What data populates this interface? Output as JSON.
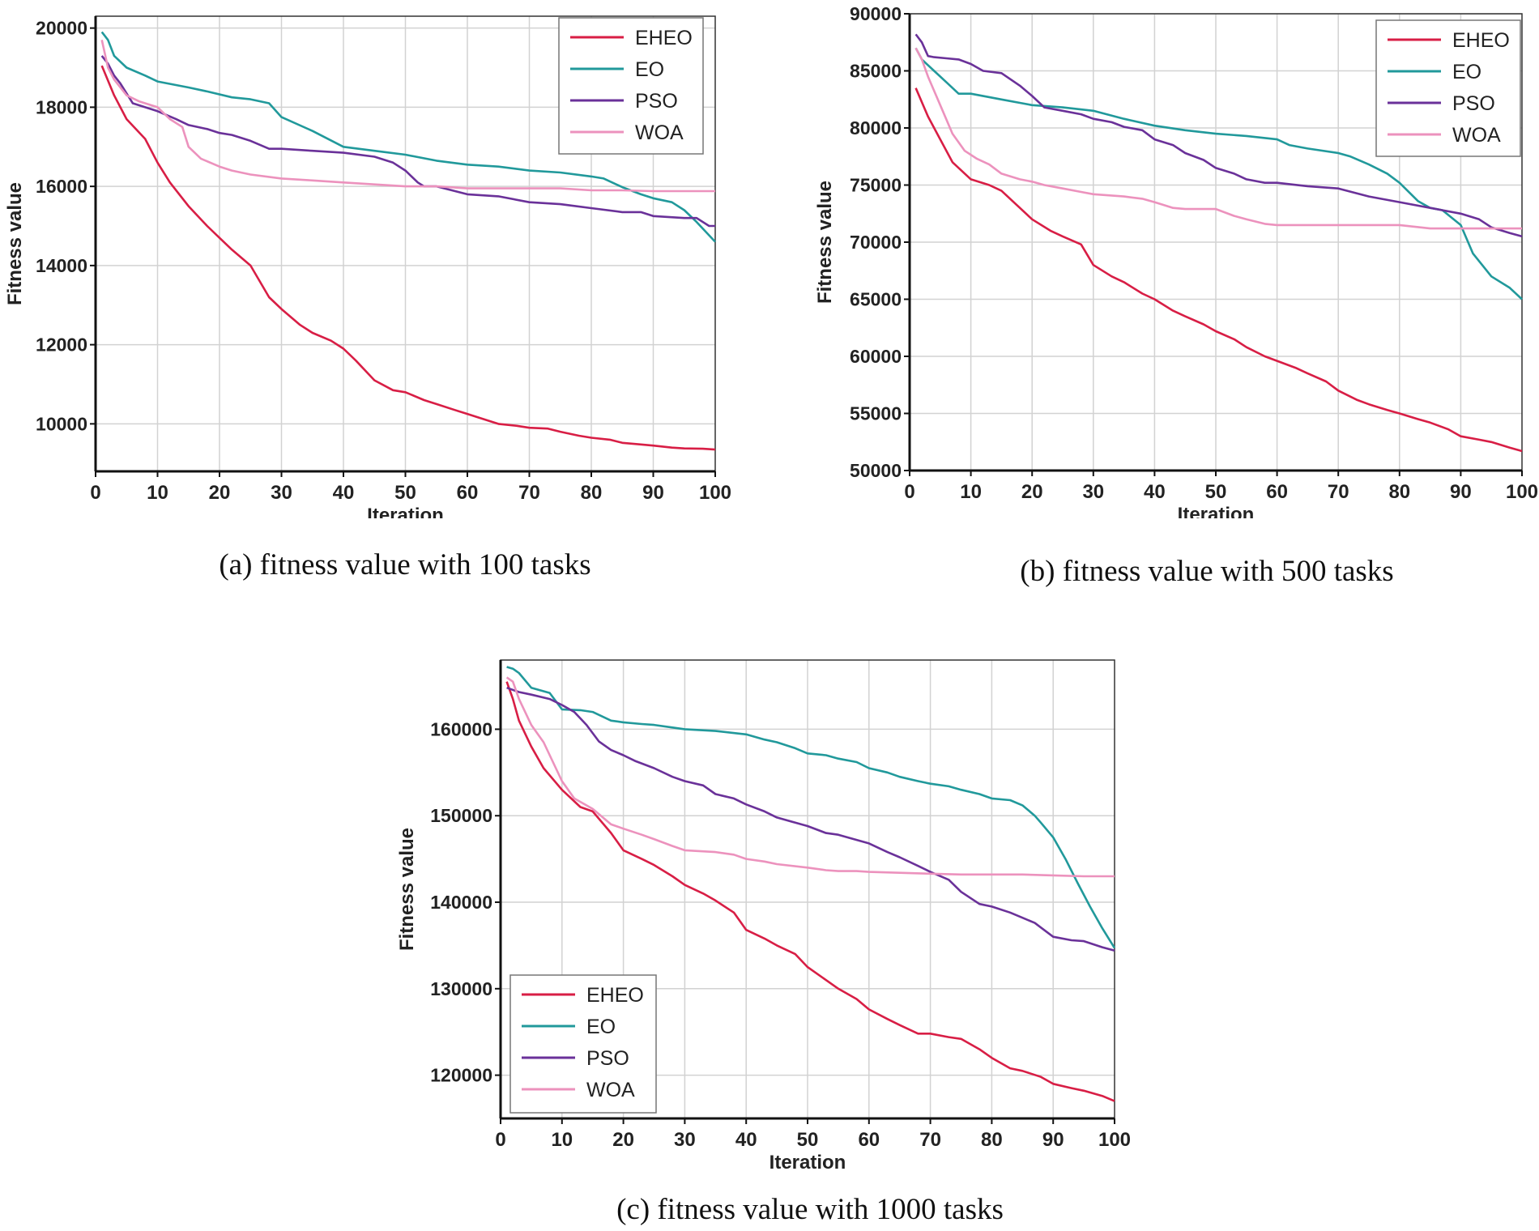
{
  "series_colors": {
    "EHEO": "#d81e45",
    "EO": "#21999b",
    "PSO": "#6a3199",
    "WOA": "#ec92bd"
  },
  "chart_data": [
    {
      "type": "line",
      "caption": "(a) fitness value with 100 tasks",
      "xlabel": "Iteration",
      "ylabel": "Fitness value",
      "xlim": [
        0,
        100
      ],
      "ylim": [
        8800,
        20300
      ],
      "xticks": [
        0,
        10,
        20,
        30,
        40,
        50,
        60,
        70,
        80,
        90,
        100
      ],
      "yticks": [
        10000,
        12000,
        14000,
        16000,
        18000,
        20000
      ],
      "legend": "top-right",
      "grid": true,
      "series": [
        {
          "name": "EHEO",
          "x": [
            1,
            3,
            5,
            8,
            10,
            12,
            15,
            18,
            20,
            22,
            25,
            28,
            30,
            33,
            35,
            38,
            40,
            42,
            45,
            48,
            50,
            53,
            55,
            58,
            60,
            63,
            65,
            68,
            70,
            73,
            75,
            78,
            80,
            83,
            85,
            88,
            90,
            93,
            95,
            98,
            100
          ],
          "y": [
            19050,
            18300,
            17700,
            17200,
            16600,
            16100,
            15500,
            15000,
            14700,
            14400,
            14000,
            13200,
            12900,
            12500,
            12300,
            12100,
            11900,
            11600,
            11100,
            10850,
            10800,
            10600,
            10500,
            10350,
            10250,
            10100,
            10000,
            9950,
            9900,
            9880,
            9800,
            9700,
            9650,
            9600,
            9520,
            9480,
            9450,
            9400,
            9380,
            9370,
            9350
          ]
        },
        {
          "name": "EO",
          "x": [
            1,
            2,
            3,
            5,
            8,
            10,
            15,
            18,
            22,
            25,
            28,
            30,
            35,
            40,
            45,
            50,
            55,
            60,
            65,
            70,
            75,
            80,
            82,
            85,
            88,
            90,
            93,
            95,
            97,
            100
          ],
          "y": [
            19900,
            19700,
            19300,
            19000,
            18800,
            18650,
            18500,
            18400,
            18250,
            18200,
            18100,
            17750,
            17400,
            17000,
            16900,
            16800,
            16650,
            16550,
            16500,
            16400,
            16350,
            16250,
            16200,
            15980,
            15800,
            15700,
            15600,
            15400,
            15100,
            14600
          ]
        },
        {
          "name": "PSO",
          "x": [
            1,
            2,
            3,
            4,
            6,
            8,
            10,
            13,
            15,
            18,
            20,
            22,
            25,
            28,
            30,
            35,
            40,
            45,
            48,
            50,
            52,
            53,
            55,
            60,
            65,
            70,
            75,
            80,
            85,
            88,
            90,
            95,
            97,
            99,
            100
          ],
          "y": [
            19300,
            19100,
            18800,
            18600,
            18100,
            18000,
            17900,
            17700,
            17550,
            17450,
            17350,
            17300,
            17150,
            16950,
            16950,
            16900,
            16850,
            16750,
            16600,
            16400,
            16100,
            16000,
            16000,
            15800,
            15750,
            15600,
            15550,
            15450,
            15350,
            15350,
            15250,
            15200,
            15200,
            15000,
            15000
          ]
        },
        {
          "name": "WOA",
          "x": [
            1,
            2,
            3,
            5,
            7,
            10,
            12,
            14,
            15,
            17,
            20,
            22,
            25,
            30,
            35,
            40,
            45,
            50,
            55,
            60,
            65,
            70,
            75,
            80,
            85,
            90,
            95,
            100
          ],
          "y": [
            19700,
            19000,
            18700,
            18300,
            18150,
            18000,
            17700,
            17500,
            17000,
            16700,
            16500,
            16400,
            16300,
            16200,
            16150,
            16100,
            16050,
            16000,
            16000,
            15950,
            15950,
            15950,
            15950,
            15900,
            15900,
            15880,
            15880,
            15880
          ]
        }
      ]
    },
    {
      "type": "line",
      "caption": "(b) fitness value with 500 tasks",
      "xlabel": "Iteration",
      "ylabel": "Fitness value",
      "xlim": [
        0,
        100
      ],
      "ylim": [
        50000,
        90000
      ],
      "xticks": [
        0,
        10,
        20,
        30,
        40,
        50,
        60,
        70,
        80,
        90,
        100
      ],
      "yticks": [
        50000,
        55000,
        60000,
        65000,
        70000,
        75000,
        80000,
        85000,
        90000
      ],
      "legend": "top-right",
      "grid": true,
      "series": [
        {
          "name": "EHEO",
          "x": [
            1,
            3,
            5,
            7,
            10,
            13,
            15,
            18,
            20,
            23,
            25,
            28,
            30,
            33,
            35,
            38,
            40,
            43,
            45,
            48,
            50,
            53,
            55,
            58,
            60,
            63,
            65,
            68,
            70,
            73,
            75,
            78,
            80,
            83,
            85,
            88,
            90,
            93,
            95,
            98,
            100
          ],
          "y": [
            83500,
            81000,
            79000,
            77000,
            75500,
            75000,
            74500,
            73000,
            72000,
            71000,
            70500,
            69800,
            68000,
            67000,
            66500,
            65500,
            65000,
            64000,
            63500,
            62800,
            62200,
            61500,
            60800,
            60000,
            59600,
            59000,
            58500,
            57800,
            57000,
            56200,
            55800,
            55300,
            55000,
            54500,
            54200,
            53600,
            53000,
            52700,
            52500,
            52000,
            51700
          ]
        },
        {
          "name": "EO",
          "x": [
            1,
            2,
            4,
            6,
            8,
            10,
            15,
            18,
            20,
            25,
            30,
            35,
            40,
            45,
            50,
            55,
            60,
            62,
            65,
            70,
            72,
            75,
            78,
            80,
            83,
            85,
            87,
            90,
            92,
            95,
            98,
            100
          ],
          "y": [
            87000,
            86000,
            85000,
            84000,
            83000,
            83000,
            82500,
            82200,
            82000,
            81800,
            81500,
            80800,
            80200,
            79800,
            79500,
            79300,
            79000,
            78500,
            78200,
            77800,
            77500,
            76800,
            76000,
            75200,
            73600,
            73000,
            72800,
            71500,
            69000,
            67000,
            66000,
            65000
          ]
        },
        {
          "name": "PSO",
          "x": [
            1,
            2,
            3,
            4,
            6,
            8,
            10,
            12,
            15,
            18,
            20,
            22,
            25,
            28,
            30,
            33,
            35,
            38,
            40,
            43,
            45,
            48,
            50,
            53,
            55,
            58,
            60,
            65,
            70,
            75,
            80,
            85,
            90,
            93,
            95,
            98,
            100
          ],
          "y": [
            88200,
            87500,
            86300,
            86200,
            86100,
            86000,
            85600,
            85000,
            84800,
            83700,
            82800,
            81800,
            81500,
            81200,
            80800,
            80500,
            80100,
            79800,
            79000,
            78500,
            77800,
            77200,
            76500,
            76000,
            75500,
            75200,
            75200,
            74900,
            74700,
            74000,
            73500,
            73000,
            72500,
            72000,
            71300,
            70800,
            70500
          ]
        },
        {
          "name": "WOA",
          "x": [
            1,
            2,
            3,
            5,
            7,
            9,
            11,
            13,
            15,
            18,
            20,
            22,
            25,
            28,
            30,
            35,
            38,
            40,
            43,
            45,
            50,
            53,
            55,
            58,
            60,
            65,
            70,
            75,
            80,
            85,
            90,
            95,
            100
          ],
          "y": [
            87000,
            86000,
            84500,
            82000,
            79500,
            78000,
            77300,
            76800,
            76000,
            75500,
            75300,
            75000,
            74700,
            74400,
            74200,
            74000,
            73800,
            73500,
            73000,
            72900,
            72900,
            72300,
            72000,
            71600,
            71500,
            71500,
            71500,
            71500,
            71500,
            71200,
            71200,
            71200,
            71200
          ]
        }
      ]
    },
    {
      "type": "line",
      "caption": "(c) fitness value with 1000 tasks",
      "xlabel": "Iteration",
      "ylabel": "Fitness value",
      "xlim": [
        0,
        100
      ],
      "ylim": [
        115000,
        168000
      ],
      "xticks": [
        0,
        10,
        20,
        30,
        40,
        50,
        60,
        70,
        80,
        90,
        100
      ],
      "yticks": [
        120000,
        130000,
        140000,
        150000,
        160000
      ],
      "legend": "bottom-left",
      "grid": true,
      "series": [
        {
          "name": "EHEO",
          "x": [
            1,
            2,
            3,
            5,
            7,
            10,
            13,
            15,
            18,
            20,
            23,
            25,
            28,
            30,
            33,
            35,
            38,
            40,
            43,
            45,
            48,
            50,
            53,
            55,
            58,
            60,
            63,
            65,
            68,
            70,
            73,
            75,
            78,
            80,
            83,
            85,
            88,
            90,
            93,
            95,
            98,
            100
          ],
          "y": [
            165500,
            163500,
            161000,
            158000,
            155500,
            153000,
            151000,
            150500,
            148000,
            146000,
            145000,
            144300,
            143000,
            142000,
            141000,
            140200,
            138800,
            136800,
            135800,
            135000,
            134000,
            132500,
            131000,
            130000,
            128800,
            127600,
            126500,
            125800,
            124800,
            124800,
            124400,
            124200,
            123000,
            122000,
            120800,
            120500,
            119800,
            119000,
            118500,
            118200,
            117600,
            117000
          ]
        },
        {
          "name": "EO",
          "x": [
            1,
            2,
            3,
            5,
            8,
            10,
            13,
            15,
            18,
            20,
            23,
            25,
            28,
            30,
            35,
            40,
            43,
            45,
            48,
            50,
            53,
            55,
            58,
            60,
            63,
            65,
            68,
            70,
            73,
            75,
            78,
            80,
            83,
            85,
            87,
            88,
            90,
            92,
            94,
            96,
            98,
            100
          ],
          "y": [
            167200,
            167000,
            166500,
            164800,
            164200,
            162300,
            162200,
            162000,
            161000,
            160800,
            160600,
            160500,
            160200,
            160000,
            159800,
            159400,
            158800,
            158500,
            157800,
            157200,
            157000,
            156600,
            156200,
            155500,
            155000,
            154500,
            154000,
            153700,
            153400,
            153000,
            152500,
            152000,
            151800,
            151200,
            150000,
            149200,
            147500,
            145000,
            142200,
            139500,
            137000,
            134700
          ]
        },
        {
          "name": "PSO",
          "x": [
            1,
            3,
            5,
            8,
            10,
            12,
            14,
            16,
            18,
            20,
            22,
            25,
            28,
            30,
            33,
            35,
            38,
            40,
            43,
            45,
            48,
            50,
            53,
            55,
            58,
            60,
            63,
            65,
            68,
            70,
            73,
            75,
            78,
            80,
            83,
            85,
            87,
            90,
            93,
            95,
            98,
            100
          ],
          "y": [
            164800,
            164300,
            164000,
            163500,
            162800,
            162000,
            160500,
            158600,
            157600,
            157000,
            156300,
            155500,
            154500,
            154000,
            153500,
            152500,
            152000,
            151300,
            150500,
            149800,
            149200,
            148800,
            148000,
            147800,
            147200,
            146800,
            145800,
            145200,
            144200,
            143500,
            142600,
            141200,
            139800,
            139500,
            138800,
            138200,
            137600,
            136000,
            135600,
            135500,
            134800,
            134400
          ]
        },
        {
          "name": "WOA",
          "x": [
            1,
            2,
            3,
            5,
            7,
            10,
            12,
            15,
            18,
            20,
            23,
            25,
            28,
            30,
            35,
            38,
            40,
            43,
            45,
            50,
            53,
            55,
            58,
            60,
            65,
            70,
            75,
            80,
            85,
            90,
            95,
            100
          ],
          "y": [
            166000,
            165500,
            163500,
            160500,
            158500,
            154000,
            152000,
            150800,
            149000,
            148500,
            147800,
            147300,
            146500,
            146000,
            145800,
            145500,
            145000,
            144700,
            144400,
            144000,
            143700,
            143600,
            143600,
            143500,
            143400,
            143300,
            143200,
            143200,
            143200,
            143100,
            143000,
            143000
          ]
        }
      ]
    }
  ]
}
